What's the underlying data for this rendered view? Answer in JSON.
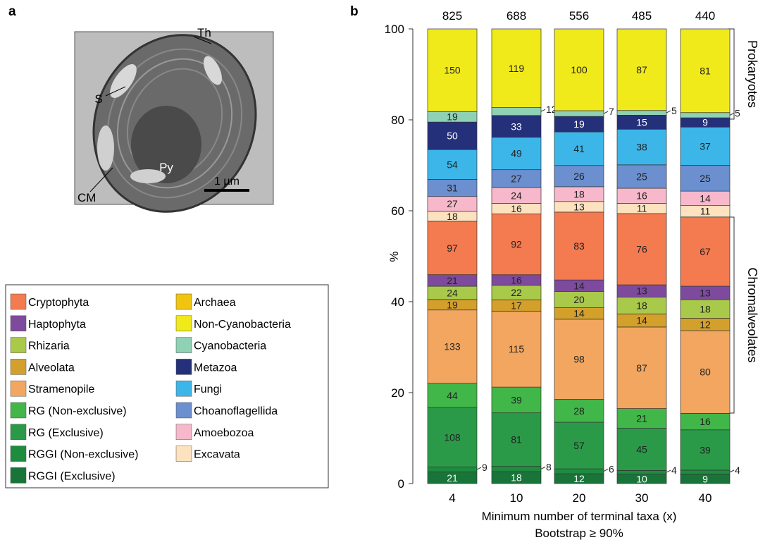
{
  "panel_a": {
    "label": "a",
    "micrograph": {
      "labels": [
        "Th",
        "S",
        "Py",
        "CM"
      ],
      "scale_bar": "1 µm"
    }
  },
  "chart_data": {
    "type": "stacked_percent_bar",
    "panel_label": "b",
    "categories": [
      "4",
      "10",
      "20",
      "30",
      "40"
    ],
    "totals": [
      825,
      688,
      556,
      485,
      440
    ],
    "x_label": "Minimum number of terminal taxa (x)",
    "x_sublabel": "Bootstrap ≥ 90%",
    "y_label": "%",
    "ylim": [
      0,
      100
    ],
    "yticks": [
      0,
      20,
      40,
      60,
      80,
      100
    ],
    "annotations": [
      "Prokaryotes",
      "Chromalveolates"
    ],
    "series": [
      {
        "name": "Cryptophyta",
        "color": "#f47a4f",
        "values": [
          97,
          92,
          83,
          76,
          67
        ]
      },
      {
        "name": "Haptophyta",
        "color": "#7e4a9d",
        "values": [
          21,
          16,
          14,
          13,
          13
        ]
      },
      {
        "name": "Rhizaria",
        "color": "#a9c94a",
        "values": [
          24,
          22,
          20,
          18,
          18
        ]
      },
      {
        "name": "Alveolata",
        "color": "#d4a02c",
        "values": [
          19,
          17,
          14,
          14,
          12
        ]
      },
      {
        "name": "Stramenopile",
        "color": "#f2a660",
        "values": [
          133,
          115,
          98,
          87,
          80
        ]
      },
      {
        "name": "RG (Non-exclusive)",
        "color": "#41b649",
        "values": [
          44,
          39,
          28,
          21,
          16
        ]
      },
      {
        "name": "RG (Exclusive)",
        "color": "#2a9a48",
        "values": [
          108,
          81,
          57,
          45,
          39
        ]
      },
      {
        "name": "RGGI (Non-exclusive)",
        "color": "#1e8c3e",
        "values": [
          9,
          8,
          6,
          4,
          4
        ]
      },
      {
        "name": "RGGI (Exclusive)",
        "color": "#19743a",
        "values": [
          21,
          18,
          12,
          10,
          9
        ]
      },
      {
        "name": "Archaea",
        "color": "#f1c40f",
        "values": [
          0,
          0,
          0,
          0,
          0
        ]
      },
      {
        "name": "Non-Cyanobacteria",
        "color": "#f1ea1a",
        "values": [
          150,
          119,
          100,
          87,
          81
        ]
      },
      {
        "name": "Cyanobacteria",
        "color": "#8fd1b5",
        "values": [
          19,
          12,
          7,
          5,
          5
        ]
      },
      {
        "name": "Metazoa",
        "color": "#25307a",
        "values": [
          50,
          33,
          19,
          15,
          9
        ]
      },
      {
        "name": "Fungi",
        "color": "#3cb6e8",
        "values": [
          54,
          49,
          41,
          38,
          37
        ]
      },
      {
        "name": "Choanoflagellida",
        "color": "#6b8fcf",
        "values": [
          31,
          27,
          26,
          25,
          25
        ]
      },
      {
        "name": "Amoebozoa",
        "color": "#f6b8ca",
        "values": [
          27,
          24,
          18,
          16,
          14
        ]
      },
      {
        "name": "Excavata",
        "color": "#fde2bf",
        "values": [
          18,
          16,
          13,
          11,
          11
        ]
      }
    ]
  }
}
